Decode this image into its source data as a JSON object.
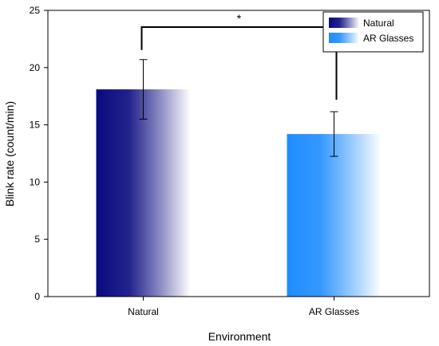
{
  "chart_data": {
    "type": "bar",
    "title": "",
    "xlabel": "Environment",
    "ylabel": "Blink rate (count/min)",
    "ylim": [
      0,
      25
    ],
    "yticks": [
      0,
      5,
      10,
      15,
      20,
      25
    ],
    "grid": false,
    "legend_position": "top-right",
    "categories": [
      "Natural",
      "AR Glasses"
    ],
    "values": [
      18.1,
      14.2
    ],
    "error": [
      2.6,
      1.95
    ],
    "colors": {
      "Natural": {
        "dark": "#0a0a80",
        "light": "#ffffff"
      },
      "AR Glasses": {
        "dark": "#1e8cff",
        "light": "#ffffff"
      }
    },
    "legend": [
      "Natural",
      "AR Glasses"
    ],
    "significance": {
      "label": "*",
      "between": [
        "Natural",
        "AR Glasses"
      ]
    }
  }
}
